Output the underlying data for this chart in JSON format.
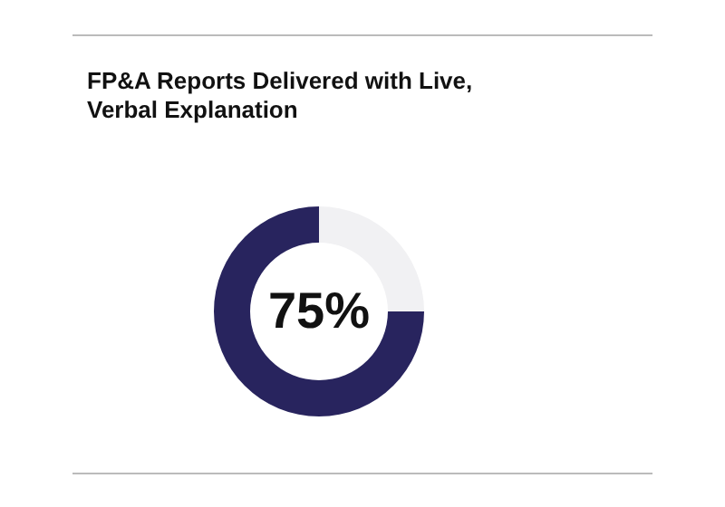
{
  "chart_data": {
    "type": "donut",
    "title": "FP&A Reports Delivered with Live, Verbal Explanation",
    "categories": [
      null,
      null
    ],
    "values": [
      75,
      25
    ],
    "colors": [
      "#28245e",
      "#f1f1f3"
    ],
    "value_labels": [
      "75%",
      null
    ],
    "legend": false
  }
}
